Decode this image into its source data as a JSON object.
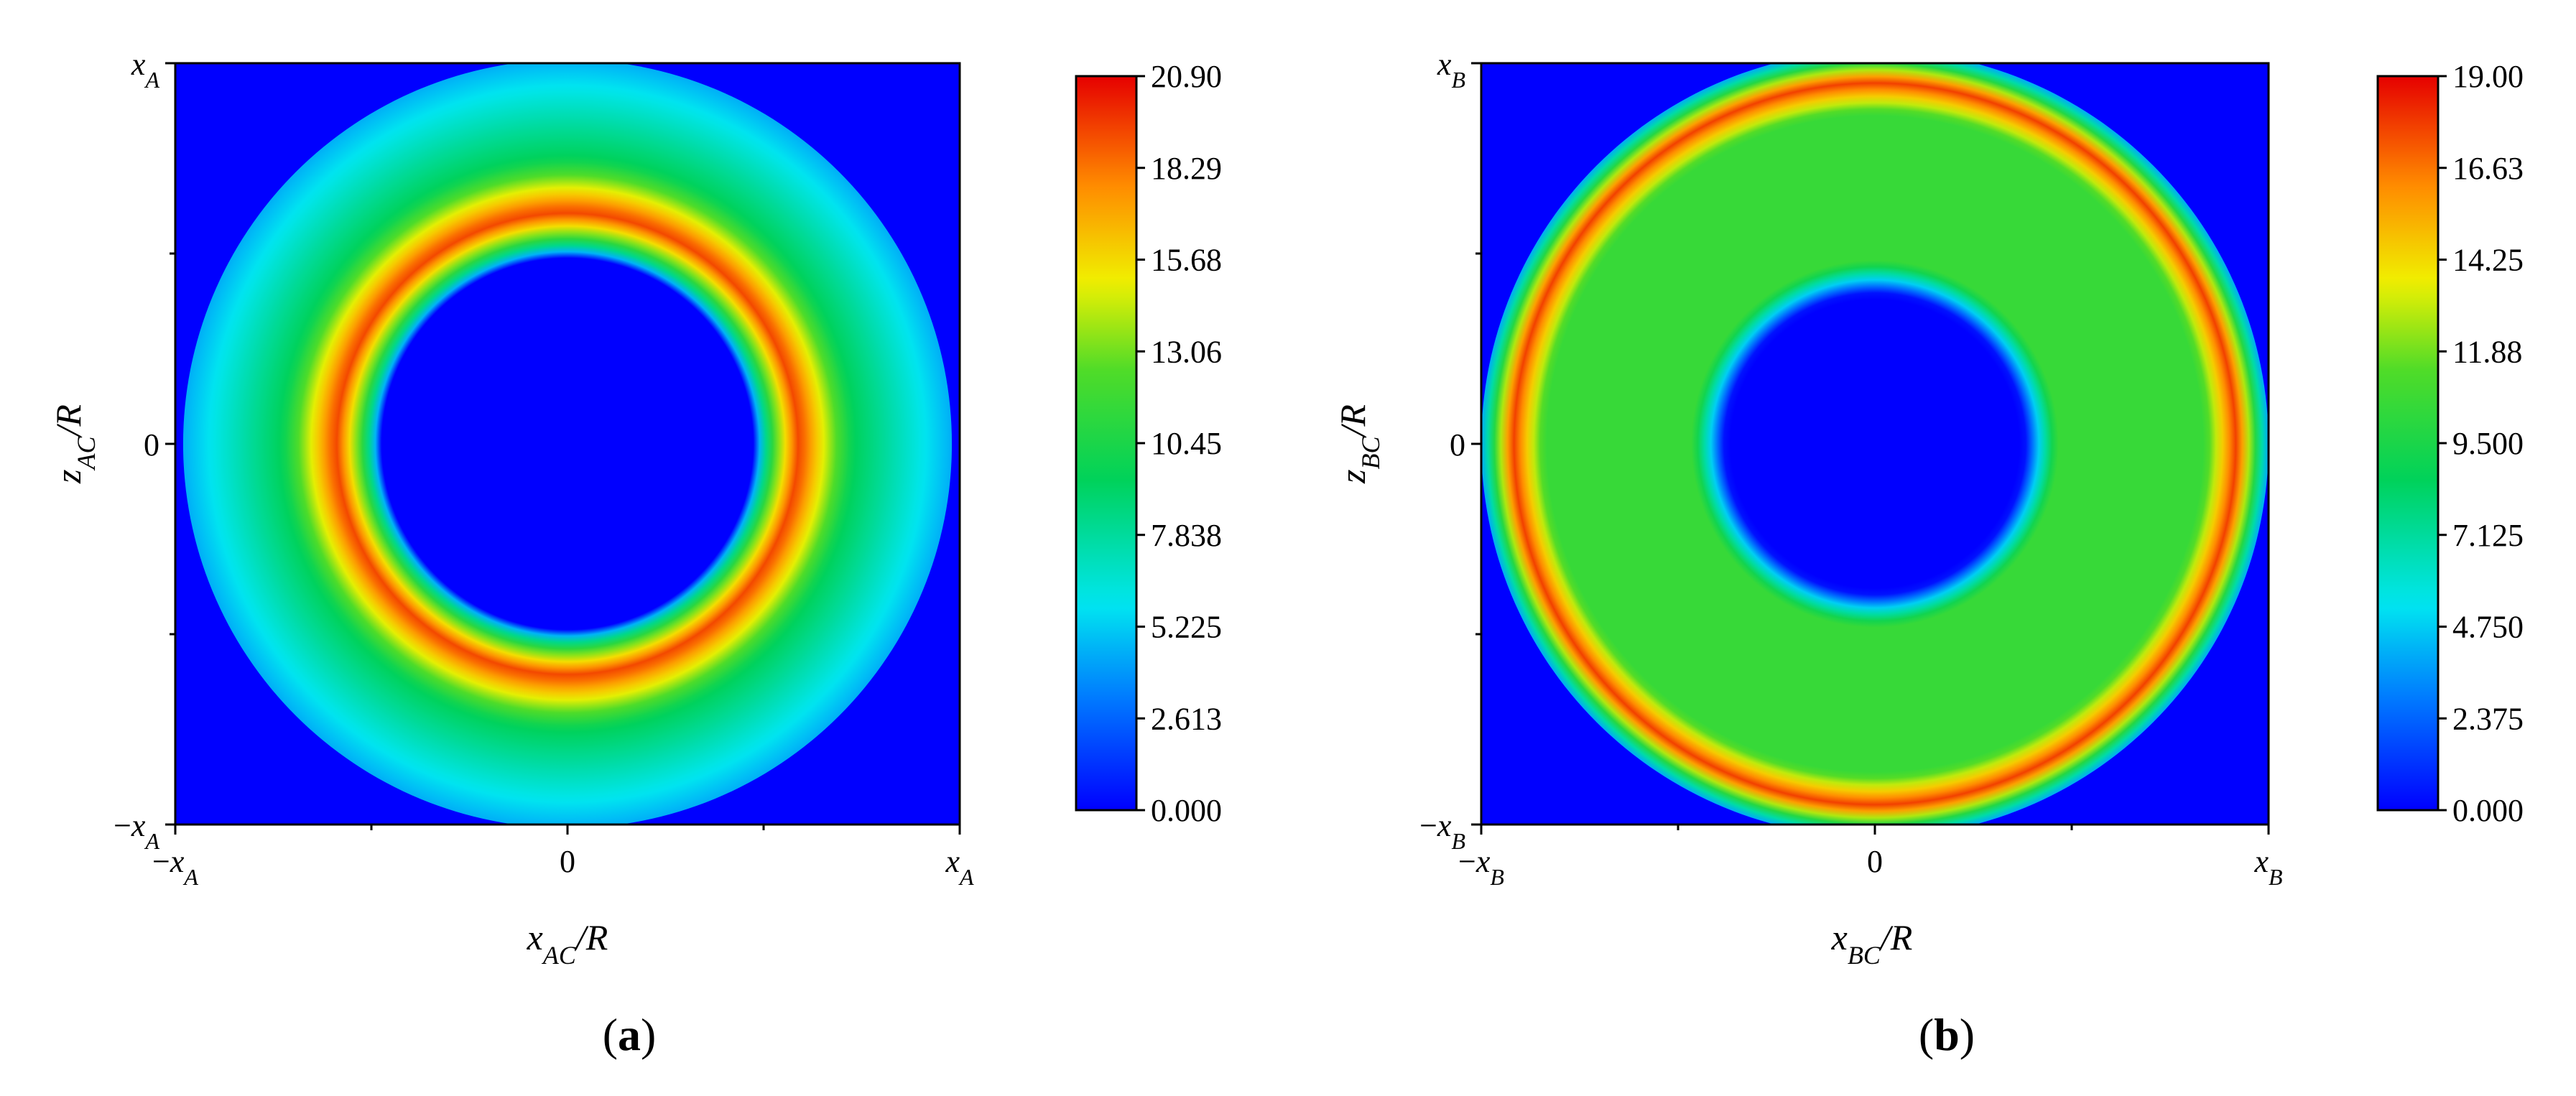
{
  "chart_data": [
    {
      "type": "heatmap",
      "panel_label": "a",
      "xlabel": {
        "main": "x",
        "sub": "AC",
        "rest": "/R"
      },
      "ylabel": {
        "main": "z",
        "sub": "AC",
        "rest": "/R"
      },
      "x_ticks": [
        {
          "pre": "−",
          "main": "x",
          "sub": "A"
        },
        {
          "pre": "",
          "main": "0",
          "sub": ""
        },
        {
          "pre": "",
          "main": "x",
          "sub": "A"
        }
      ],
      "y_ticks": [
        {
          "pre": "−",
          "main": "x",
          "sub": "A"
        },
        {
          "pre": "",
          "main": "0",
          "sub": ""
        },
        {
          "pre": "",
          "main": "x",
          "sub": "A"
        }
      ],
      "colorbar": {
        "min": 0,
        "max": 20.9,
        "ticks": [
          "0.000",
          "2.613",
          "5.225",
          "7.838",
          "10.45",
          "13.06",
          "15.68",
          "18.29",
          "20.90"
        ]
      },
      "field": {
        "description_free": true,
        "inner_radius": 0.5,
        "peak_radius": 0.59,
        "outer_radius": 0.98,
        "peak_value": 19.5,
        "plateau_value": 9.5,
        "edge_value": 4.5
      }
    },
    {
      "type": "heatmap",
      "panel_label": "b",
      "xlabel": {
        "main": "x",
        "sub": "BC",
        "rest": "/R"
      },
      "ylabel": {
        "main": "z",
        "sub": "BC",
        "rest": "/R"
      },
      "x_ticks": [
        {
          "pre": "−",
          "main": "x",
          "sub": "B"
        },
        {
          "pre": "",
          "main": "0",
          "sub": ""
        },
        {
          "pre": "",
          "main": "x",
          "sub": "B"
        }
      ],
      "y_ticks": [
        {
          "pre": "−",
          "main": "x",
          "sub": "B"
        },
        {
          "pre": "",
          "main": "0",
          "sub": ""
        },
        {
          "pre": "",
          "main": "x",
          "sub": "B"
        }
      ],
      "colorbar": {
        "min": 0,
        "max": 19.0,
        "ticks": [
          "0.000",
          "2.375",
          "4.750",
          "7.125",
          "9.500",
          "11.88",
          "14.25",
          "16.63",
          "19.00"
        ]
      },
      "field": {
        "inner_radius": 0.4,
        "peak_radius": 0.92,
        "outer_radius": 1.0,
        "peak_value": 18.0,
        "plateau_value": 10.5,
        "edge_value": 4.0
      }
    }
  ]
}
